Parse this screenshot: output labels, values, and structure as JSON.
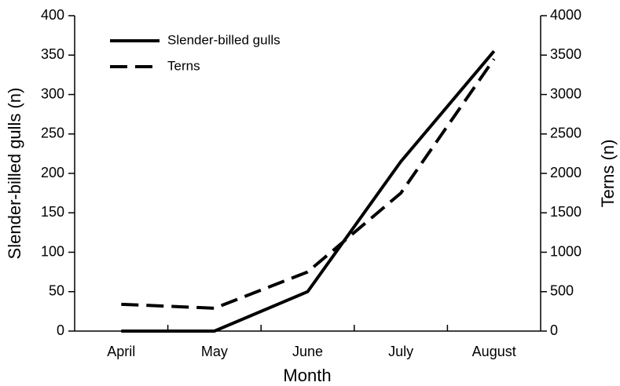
{
  "chart_data": {
    "type": "line",
    "x_label": "Month",
    "y_label": "Slender-billed gulls (n)",
    "y2_label": "Terns (n)",
    "categories": [
      "April",
      "May",
      "June",
      "July",
      "August"
    ],
    "series": [
      {
        "name": "Slender-billed gulls",
        "color": "#000000",
        "linestyle": "solid",
        "values": [
          0,
          0,
          50,
          215,
          355
        ]
      },
      {
        "name": "Terns",
        "color": "#000000",
        "linestyle": "dashed",
        "axis": "y2",
        "values": [
          340,
          290,
          750,
          1750,
          3450
        ]
      }
    ],
    "ylim": [
      0,
      400
    ],
    "yticks": [
      0,
      50,
      100,
      150,
      200,
      250,
      300,
      350,
      400
    ],
    "y2lim": [
      0,
      4000
    ],
    "y2ticks": [
      0,
      500,
      1000,
      1500,
      2000,
      2500,
      3000,
      3500,
      4000
    ],
    "grid": false,
    "legend": "upper left"
  }
}
